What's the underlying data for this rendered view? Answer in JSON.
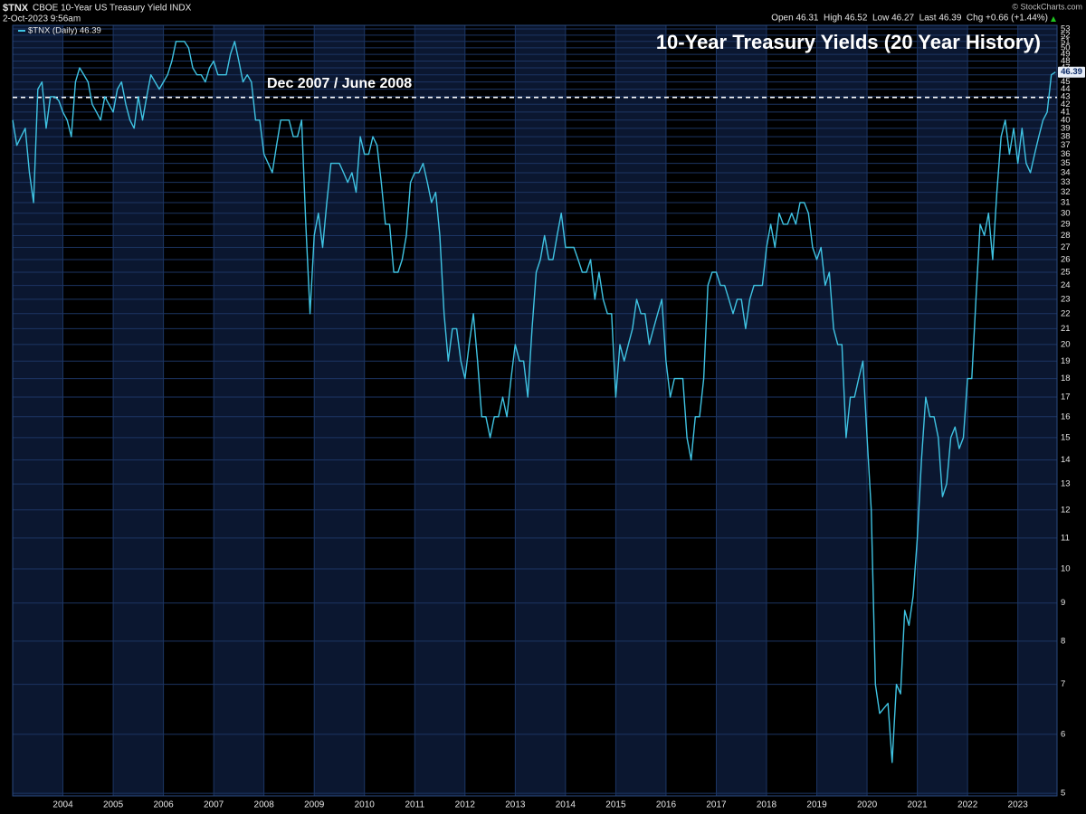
{
  "chart_data": {
    "type": "line",
    "symbol": "$TNX",
    "description": "CBOE 10-Year US Treasury Yield INDX",
    "timestamp": "2-Oct-2023 9:56am",
    "quote_text": "Open 46.31  High 46.52  Low 46.27  Last 46.39  Chg +0.66 (+1.44%)",
    "copyright": "© StockCharts.com",
    "title": "10-Year Treasury Yields (20 Year History)",
    "reference_line": {
      "value": 42.9,
      "label": "Dec 2007 / June 2008"
    },
    "log_scale": true,
    "grid": true,
    "legend": "top-left",
    "xlim": [
      2003,
      2023.78
    ],
    "xticks": [
      2004,
      2005,
      2006,
      2007,
      2008,
      2009,
      2010,
      2011,
      2012,
      2013,
      2014,
      2015,
      2016,
      2017,
      2018,
      2019,
      2020,
      2021,
      2022,
      2023
    ],
    "ylim": [
      4.96,
      53.6
    ],
    "yticks": [
      5,
      6,
      7,
      8,
      9,
      10,
      11,
      12,
      13,
      14,
      15,
      16,
      17,
      18,
      19,
      20,
      21,
      22,
      23,
      24,
      25,
      26,
      27,
      28,
      29,
      30,
      31,
      32,
      33,
      34,
      35,
      36,
      37,
      38,
      39,
      40,
      41,
      42,
      43,
      44,
      45,
      46,
      47,
      48,
      49,
      50,
      51,
      52,
      53
    ],
    "x": [
      "2003-01",
      "2003-02",
      "2003-03",
      "2003-04",
      "2003-05",
      "2003-06",
      "2003-07",
      "2003-08",
      "2003-09",
      "2003-10",
      "2003-11",
      "2003-12",
      "2004-01",
      "2004-02",
      "2004-03",
      "2004-04",
      "2004-05",
      "2004-06",
      "2004-07",
      "2004-08",
      "2004-09",
      "2004-10",
      "2004-11",
      "2004-12",
      "2005-01",
      "2005-02",
      "2005-03",
      "2005-04",
      "2005-05",
      "2005-06",
      "2005-07",
      "2005-08",
      "2005-09",
      "2005-10",
      "2005-11",
      "2005-12",
      "2006-01",
      "2006-02",
      "2006-03",
      "2006-04",
      "2006-05",
      "2006-06",
      "2006-07",
      "2006-08",
      "2006-09",
      "2006-10",
      "2006-11",
      "2006-12",
      "2007-01",
      "2007-02",
      "2007-03",
      "2007-04",
      "2007-05",
      "2007-06",
      "2007-07",
      "2007-08",
      "2007-09",
      "2007-10",
      "2007-11",
      "2007-12",
      "2008-01",
      "2008-02",
      "2008-03",
      "2008-04",
      "2008-05",
      "2008-06",
      "2008-07",
      "2008-08",
      "2008-09",
      "2008-10",
      "2008-11",
      "2008-12",
      "2009-01",
      "2009-02",
      "2009-03",
      "2009-04",
      "2009-05",
      "2009-06",
      "2009-07",
      "2009-08",
      "2009-09",
      "2009-10",
      "2009-11",
      "2009-12",
      "2010-01",
      "2010-02",
      "2010-03",
      "2010-04",
      "2010-05",
      "2010-06",
      "2010-07",
      "2010-08",
      "2010-09",
      "2010-10",
      "2010-11",
      "2010-12",
      "2011-01",
      "2011-02",
      "2011-03",
      "2011-04",
      "2011-05",
      "2011-06",
      "2011-07",
      "2011-08",
      "2011-09",
      "2011-10",
      "2011-11",
      "2011-12",
      "2012-01",
      "2012-02",
      "2012-03",
      "2012-04",
      "2012-05",
      "2012-06",
      "2012-07",
      "2012-08",
      "2012-09",
      "2012-10",
      "2012-11",
      "2012-12",
      "2013-01",
      "2013-02",
      "2013-03",
      "2013-04",
      "2013-05",
      "2013-06",
      "2013-07",
      "2013-08",
      "2013-09",
      "2013-10",
      "2013-11",
      "2013-12",
      "2014-01",
      "2014-02",
      "2014-03",
      "2014-04",
      "2014-05",
      "2014-06",
      "2014-07",
      "2014-08",
      "2014-09",
      "2014-10",
      "2014-11",
      "2014-12",
      "2015-01",
      "2015-02",
      "2015-03",
      "2015-04",
      "2015-05",
      "2015-06",
      "2015-07",
      "2015-08",
      "2015-09",
      "2015-10",
      "2015-11",
      "2015-12",
      "2016-01",
      "2016-02",
      "2016-03",
      "2016-04",
      "2016-05",
      "2016-06",
      "2016-07",
      "2016-08",
      "2016-09",
      "2016-10",
      "2016-11",
      "2016-12",
      "2017-01",
      "2017-02",
      "2017-03",
      "2017-04",
      "2017-05",
      "2017-06",
      "2017-07",
      "2017-08",
      "2017-09",
      "2017-10",
      "2017-11",
      "2017-12",
      "2018-01",
      "2018-02",
      "2018-03",
      "2018-04",
      "2018-05",
      "2018-06",
      "2018-07",
      "2018-08",
      "2018-09",
      "2018-10",
      "2018-11",
      "2018-12",
      "2019-01",
      "2019-02",
      "2019-03",
      "2019-04",
      "2019-05",
      "2019-06",
      "2019-07",
      "2019-08",
      "2019-09",
      "2019-10",
      "2019-11",
      "2019-12",
      "2020-01",
      "2020-02",
      "2020-03",
      "2020-04",
      "2020-05",
      "2020-06",
      "2020-07",
      "2020-08",
      "2020-09",
      "2020-10",
      "2020-11",
      "2020-12",
      "2021-01",
      "2021-02",
      "2021-03",
      "2021-04",
      "2021-05",
      "2021-06",
      "2021-07",
      "2021-08",
      "2021-09",
      "2021-10",
      "2021-11",
      "2021-12",
      "2022-01",
      "2022-02",
      "2022-03",
      "2022-04",
      "2022-05",
      "2022-06",
      "2022-07",
      "2022-08",
      "2022-09",
      "2022-10",
      "2022-11",
      "2022-12",
      "2023-01",
      "2023-02",
      "2023-03",
      "2023-04",
      "2023-05",
      "2023-06",
      "2023-07",
      "2023-08",
      "2023-09",
      "2023-10"
    ],
    "series": [
      {
        "name": "$TNX (Daily) 46.39",
        "color": "#3fc3e2",
        "values": [
          40,
          37,
          38,
          39,
          34,
          31,
          44,
          45,
          39,
          43,
          43,
          42.5,
          41,
          40,
          38,
          45,
          47,
          46,
          45,
          42,
          41,
          40,
          43,
          42,
          41,
          44,
          45,
          42,
          40,
          39,
          43,
          40,
          43,
          46,
          45,
          44,
          45,
          46,
          48,
          51,
          51,
          51,
          50,
          47,
          46,
          46,
          45,
          47,
          48,
          46,
          46,
          46,
          49,
          51,
          48,
          45,
          46,
          45,
          40,
          40,
          36,
          35,
          34,
          37,
          40,
          40,
          40,
          38,
          38,
          40,
          29,
          22,
          28,
          30,
          27,
          31,
          35,
          35,
          35,
          34,
          33,
          34,
          32,
          38,
          36,
          36,
          38,
          37,
          33,
          29,
          29,
          25,
          25,
          26,
          28,
          33,
          34,
          34,
          35,
          33,
          31,
          32,
          28,
          22,
          19,
          21,
          21,
          19,
          18,
          20,
          22,
          19,
          16,
          16,
          15,
          16,
          16,
          17,
          16,
          18,
          20,
          19,
          19,
          17,
          21,
          25,
          26,
          28,
          26,
          26,
          28,
          30,
          27,
          27,
          27,
          26,
          25,
          25,
          26,
          23,
          25,
          23,
          22,
          22,
          17,
          20,
          19,
          20,
          21,
          23,
          22,
          22,
          20,
          21,
          22,
          23,
          19,
          17,
          18,
          18,
          18,
          15,
          14,
          16,
          16,
          18,
          24,
          25,
          25,
          24,
          24,
          23,
          22,
          23,
          23,
          21,
          23,
          24,
          24,
          24,
          27,
          29,
          27,
          30,
          29,
          29,
          30,
          29,
          31,
          31,
          30,
          27,
          26,
          27,
          24,
          25,
          21,
          20,
          20,
          15,
          17,
          17,
          18,
          19,
          15,
          12,
          7,
          6.4,
          6.5,
          6.6,
          5.5,
          7,
          6.8,
          8.8,
          8.4,
          9.2,
          11,
          14,
          17,
          16,
          16,
          15,
          12.5,
          13,
          15,
          15.5,
          14.5,
          15,
          18,
          18,
          23,
          29,
          28,
          30,
          26,
          32,
          38,
          40,
          36,
          39,
          35,
          39,
          35,
          34,
          36,
          38,
          40,
          41,
          46,
          46.39
        ]
      }
    ]
  }
}
